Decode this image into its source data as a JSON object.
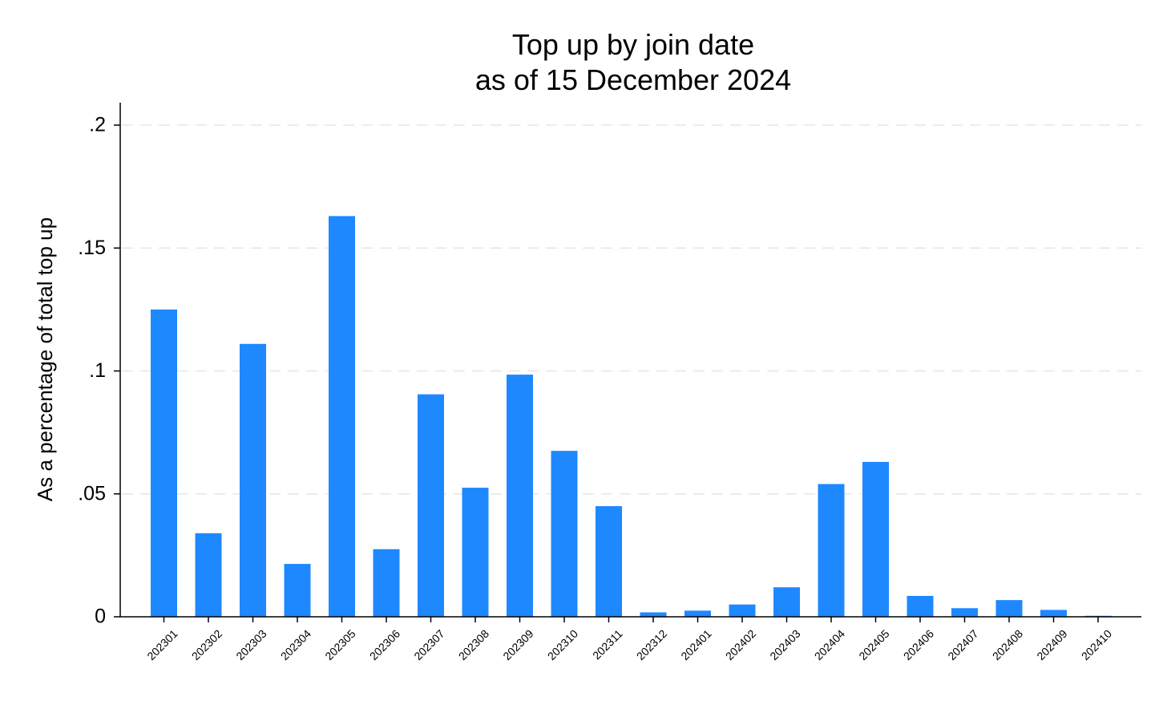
{
  "chart_data": {
    "type": "bar",
    "title": [
      "Top up by join date",
      "as of 15 December 2024"
    ],
    "xlabel": "",
    "ylabel": "As a percentage of total top up",
    "ylim": [
      0,
      0.2
    ],
    "yticks": [
      0,
      0.05,
      0.1,
      0.15,
      0.2
    ],
    "ytick_labels": [
      "0",
      ".05",
      ".1",
      ".15",
      ".2"
    ],
    "grid": true,
    "legend": "none",
    "bar_color": "#1e88ff",
    "categories": [
      "202301",
      "202302",
      "202303",
      "202304",
      "202305",
      "202306",
      "202307",
      "202308",
      "202309",
      "202310",
      "202311",
      "202312",
      "202401",
      "202402",
      "202403",
      "202404",
      "202405",
      "202406",
      "202407",
      "202408",
      "202409",
      "202410"
    ],
    "values": [
      0.125,
      0.034,
      0.111,
      0.0215,
      0.163,
      0.0275,
      0.0905,
      0.0525,
      0.0985,
      0.0675,
      0.045,
      0.0018,
      0.0025,
      0.005,
      0.012,
      0.054,
      0.063,
      0.0085,
      0.0035,
      0.0068,
      0.0028,
      0.0004
    ]
  }
}
